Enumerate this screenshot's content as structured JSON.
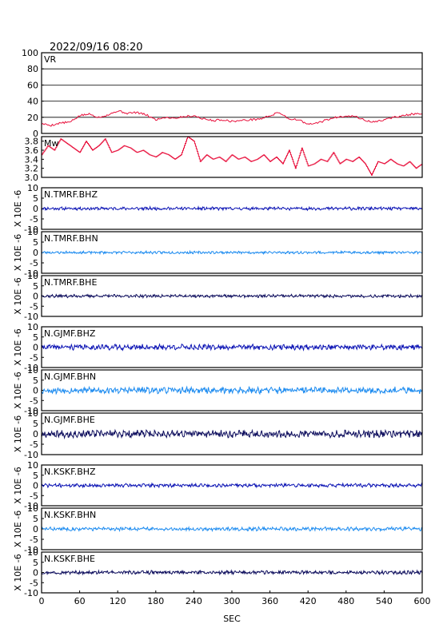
{
  "header": {
    "timestamp": "2022/09/16 08:20"
  },
  "axes": {
    "x_label": "SEC",
    "x_ticks": [
      "0",
      "60",
      "120",
      "180",
      "240",
      "300",
      "360",
      "420",
      "480",
      "540",
      "600"
    ],
    "x_range": [
      0,
      600
    ],
    "y_side_label": "X 10E -6"
  },
  "colors": {
    "vr_line": "#e8103c",
    "mw_line": "#e8103c",
    "bhz": "#0a12b4",
    "bhn": "#1e8cf0",
    "bhe": "#0c0c5c",
    "grid": "#000000",
    "frame": "#000000"
  },
  "chart_data": [
    {
      "type": "line",
      "panel": "VR",
      "title": "VR",
      "ylim": [
        0,
        100
      ],
      "y_ticks": [
        "100",
        "80",
        "60",
        "40",
        "20",
        "0"
      ],
      "grid": true,
      "series": [
        {
          "x": [
            0,
            15,
            30,
            45,
            60,
            75,
            90,
            105,
            120,
            135,
            150,
            165,
            180,
            195,
            210,
            225,
            240,
            255,
            270,
            285,
            300,
            315,
            330,
            345,
            360,
            375,
            390,
            405,
            420,
            435,
            450,
            465,
            480,
            495,
            510,
            525,
            540,
            555,
            570,
            585,
            600
          ],
          "values": [
            12,
            10,
            13,
            14,
            22,
            24,
            20,
            23,
            28,
            25,
            26,
            23,
            17,
            20,
            19,
            21,
            22,
            18,
            16,
            17,
            15,
            16,
            17,
            18,
            22,
            26,
            18,
            17,
            11,
            13,
            17,
            20,
            22,
            21,
            16,
            14,
            17,
            20,
            22,
            24,
            24
          ]
        }
      ]
    },
    {
      "type": "line",
      "panel": "Mw",
      "title": "Mw",
      "ylim": [
        3.0,
        3.9
      ],
      "y_ticks": [
        "3.8",
        "3.6",
        "3.4",
        "3.2",
        "3.0"
      ],
      "grid": false,
      "series": [
        {
          "x": [
            0,
            10,
            20,
            30,
            40,
            50,
            60,
            70,
            80,
            90,
            100,
            110,
            120,
            130,
            140,
            150,
            160,
            170,
            180,
            190,
            200,
            210,
            220,
            230,
            240,
            250,
            260,
            270,
            280,
            290,
            300,
            310,
            320,
            330,
            340,
            350,
            360,
            370,
            380,
            390,
            400,
            410,
            420,
            430,
            440,
            450,
            460,
            470,
            480,
            490,
            500,
            510,
            520,
            530,
            540,
            550,
            560,
            570,
            580,
            590,
            600
          ],
          "values": [
            3.5,
            3.7,
            3.6,
            3.85,
            3.75,
            3.65,
            3.55,
            3.8,
            3.6,
            3.7,
            3.85,
            3.55,
            3.6,
            3.7,
            3.65,
            3.55,
            3.6,
            3.5,
            3.45,
            3.55,
            3.5,
            3.4,
            3.5,
            3.9,
            3.8,
            3.35,
            3.5,
            3.4,
            3.45,
            3.35,
            3.5,
            3.4,
            3.45,
            3.35,
            3.4,
            3.5,
            3.35,
            3.45,
            3.3,
            3.6,
            3.2,
            3.65,
            3.25,
            3.3,
            3.4,
            3.35,
            3.55,
            3.3,
            3.4,
            3.35,
            3.45,
            3.3,
            3.05,
            3.35,
            3.3,
            3.4,
            3.3,
            3.25,
            3.35,
            3.2,
            3.3
          ]
        }
      ]
    },
    {
      "type": "line",
      "panel": "N.TMRF.BHZ",
      "title": "N.TMRF.BHZ",
      "ylim": [
        -10,
        10
      ],
      "y_ticks": [
        "10",
        "5",
        "0",
        "-5",
        "-10"
      ],
      "channel": "bhz",
      "amplitude": 0.6,
      "seed": 11
    },
    {
      "type": "line",
      "panel": "N.TMRF.BHN",
      "title": "N.TMRF.BHN",
      "ylim": [
        -10,
        10
      ],
      "y_ticks": [
        "10",
        "5",
        "0",
        "-5",
        "-10"
      ],
      "channel": "bhn",
      "amplitude": 0.5,
      "seed": 23
    },
    {
      "type": "line",
      "panel": "N.TMRF.BHE",
      "title": "N.TMRF.BHE",
      "ylim": [
        -10,
        10
      ],
      "y_ticks": [
        "10",
        "5",
        "0",
        "-5",
        "-10"
      ],
      "channel": "bhe",
      "amplitude": 0.6,
      "seed": 37
    },
    {
      "type": "line",
      "panel": "N.GJMF.BHZ",
      "title": "N.GJMF.BHZ",
      "ylim": [
        -10,
        10
      ],
      "y_ticks": [
        "10",
        "5",
        "0",
        "-5",
        "-10"
      ],
      "channel": "bhz",
      "amplitude": 1.1,
      "seed": 41
    },
    {
      "type": "line",
      "panel": "N.GJMF.BHN",
      "title": "N.GJMF.BHN",
      "ylim": [
        -10,
        10
      ],
      "y_ticks": [
        "10",
        "5",
        "0",
        "-5",
        "-10"
      ],
      "channel": "bhn",
      "amplitude": 1.3,
      "seed": 53
    },
    {
      "type": "line",
      "panel": "N.GJMF.BHE",
      "title": "N.GJMF.BHE",
      "ylim": [
        -10,
        10
      ],
      "y_ticks": [
        "10",
        "5",
        "0",
        "-5",
        "-10"
      ],
      "channel": "bhe",
      "amplitude": 1.4,
      "seed": 67
    },
    {
      "type": "line",
      "panel": "N.KSKF.BHZ",
      "title": "N.KSKF.BHZ",
      "ylim": [
        -10,
        10
      ],
      "y_ticks": [
        "10",
        "5",
        "0",
        "-5",
        "-10"
      ],
      "channel": "bhz",
      "amplitude": 0.7,
      "seed": 71
    },
    {
      "type": "line",
      "panel": "N.KSKF.BHN",
      "title": "N.KSKF.BHN",
      "ylim": [
        -10,
        10
      ],
      "y_ticks": [
        "10",
        "5",
        "0",
        "-5",
        "-10"
      ],
      "channel": "bhn",
      "amplitude": 0.7,
      "seed": 83
    },
    {
      "type": "line",
      "panel": "N.KSKF.BHE",
      "title": "N.KSKF.BHE",
      "ylim": [
        -10,
        10
      ],
      "y_ticks": [
        "10",
        "5",
        "0",
        "-5",
        "-10"
      ],
      "channel": "bhe",
      "amplitude": 0.7,
      "seed": 97
    }
  ]
}
